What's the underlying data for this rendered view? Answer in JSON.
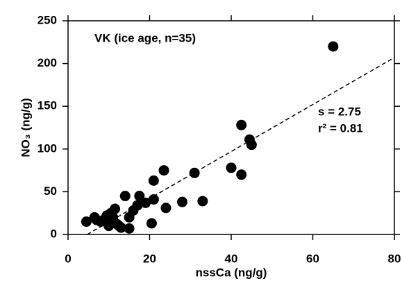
{
  "chart_data": {
    "type": "scatter",
    "annotations": [
      "VK (ice age, n=35)",
      "s = 2.75",
      "r² = 0.81"
    ],
    "xlabel": "nssCa (ng/g)",
    "ylabel": "NO₃ (ng/g)",
    "x": [
      65,
      42.5,
      44.5,
      45,
      40,
      42.5,
      31,
      33,
      28,
      23.5,
      24,
      21,
      21,
      20.5,
      19,
      17.5,
      17,
      16,
      15,
      15,
      14,
      12,
      11.5,
      11,
      10.5,
      10,
      10,
      9.5,
      9,
      8,
      7,
      6.5,
      4.5,
      12.5,
      13
    ],
    "values": [
      220,
      128,
      111,
      105,
      78,
      70,
      72,
      39,
      38,
      75,
      31,
      63,
      41,
      13,
      37,
      45,
      34,
      28,
      20,
      7,
      45,
      12,
      30,
      20,
      25,
      15,
      10,
      22,
      18,
      15,
      17,
      20,
      15,
      10,
      8
    ],
    "color": "#000000",
    "trend_line": {
      "x": [
        4.7,
        80
      ],
      "y": [
        0,
        207
      ]
    },
    "xlim": [
      0,
      80
    ],
    "xticks": [
      0,
      20,
      40,
      60,
      80
    ],
    "ylim": [
      0,
      250
    ],
    "yticks": [
      0,
      50,
      100,
      150,
      200,
      250
    ]
  }
}
